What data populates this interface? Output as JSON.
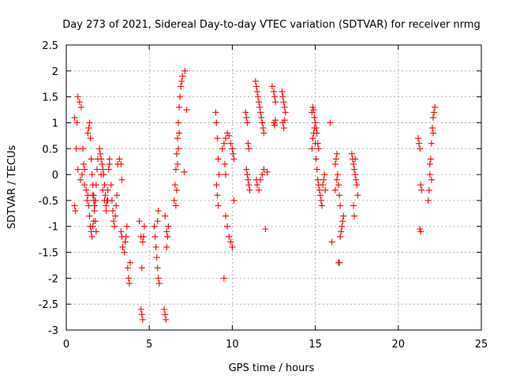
{
  "chart_data": {
    "type": "scatter",
    "title": "Day 273 of 2021, Sidereal Day-to-day VTEC variation (SDTVAR) for receiver nrmg",
    "xlabel": "GPS time / hours",
    "ylabel": "SDTVAR / TECUs",
    "xlim": [
      0,
      25
    ],
    "ylim": [
      -3,
      2.5
    ],
    "xticks": [
      0,
      5,
      10,
      15,
      20,
      25
    ],
    "xtick_labels": [
      "0",
      "5",
      "10",
      "15",
      "20",
      "25"
    ],
    "yticks": [
      2.5,
      2,
      1.5,
      1,
      0.5,
      0,
      -0.5,
      -1,
      -1.5,
      -2,
      -2.5,
      -3
    ],
    "ytick_labels": [
      "2.5",
      "2",
      "1.5",
      "1",
      "0.5",
      "0",
      "-0.5",
      "-1",
      "-1.5",
      "-2",
      "-2.5",
      "-3"
    ],
    "grid": true,
    "marker": "plus",
    "color": "#ff0000",
    "series": [
      {
        "name": "SDTVAR",
        "x": [
          0.5,
          0.6,
          0.7,
          0.5,
          0.55,
          0.65,
          0.7,
          0.8,
          0.9,
          1.0,
          1.05,
          1.1,
          0.85,
          0.95,
          1.1,
          1.2,
          1.25,
          1.3,
          1.35,
          1.4,
          1.45,
          1.5,
          1.55,
          1.6,
          1.65,
          1.7,
          1.75,
          1.8,
          1.85,
          1.9,
          1.3,
          1.35,
          1.4,
          1.45,
          1.5,
          1.55,
          1.6,
          1.65,
          1.7,
          1.75,
          1.8,
          1.6,
          1.65,
          1.7,
          1.75,
          2.0,
          2.05,
          2.1,
          2.15,
          2.2,
          2.25,
          2.3,
          2.35,
          2.4,
          2.45,
          2.5,
          2.55,
          2.6,
          2.1,
          2.2,
          2.3,
          2.4,
          2.5,
          2.6,
          2.7,
          2.75,
          2.8,
          2.85,
          2.9,
          2.95,
          3.0,
          3.05,
          3.1,
          3.2,
          3.3,
          3.35,
          3.3,
          3.35,
          3.4,
          3.5,
          3.55,
          3.6,
          3.65,
          3.7,
          3.75,
          3.8,
          3.85,
          4.4,
          4.5,
          4.55,
          4.6,
          4.5,
          4.55,
          4.6,
          4.65,
          4.7,
          5.3,
          5.35,
          5.4,
          5.45,
          5.5,
          5.55,
          5.6,
          5.5,
          5.55,
          5.9,
          5.95,
          6.0,
          6.05,
          6.1,
          6.15,
          5.95,
          6.05,
          6.5,
          6.55,
          6.6,
          6.65,
          6.7,
          6.75,
          6.8,
          6.85,
          6.9,
          6.95,
          7.0,
          6.6,
          6.65,
          6.7,
          6.75,
          6.8,
          7.15,
          7.25,
          7.1,
          9.0,
          9.05,
          9.1,
          9.15,
          9.2,
          9.05,
          9.1,
          9.15,
          9.4,
          9.5,
          9.6,
          9.7,
          9.8,
          9.9,
          10.0,
          10.05,
          10.1,
          9.6,
          9.7,
          9.8,
          9.9,
          10.0,
          10.1,
          9.5,
          9.55,
          9.6,
          10.8,
          10.85,
          10.9,
          10.95,
          11.0,
          10.85,
          10.9,
          10.95,
          11.0,
          11.05,
          11.4,
          11.45,
          11.5,
          11.55,
          11.6,
          11.65,
          11.7,
          11.75,
          11.8,
          11.85,
          11.9,
          11.45,
          11.5,
          11.6,
          11.7,
          11.8,
          11.9,
          12.0,
          12.1,
          12.4,
          12.5,
          12.55,
          12.6,
          12.5,
          12.55,
          12.6,
          13.0,
          13.05,
          13.1,
          13.15,
          13.2,
          13.05,
          13.1,
          13.15,
          14.8,
          14.85,
          14.9,
          14.95,
          15.0,
          15.05,
          15.1,
          15.15,
          15.2,
          14.8,
          14.85,
          14.9,
          14.95,
          15.0,
          15.05,
          15.1,
          15.15,
          15.2,
          15.25,
          15.3,
          15.35,
          15.4,
          15.45,
          15.5,
          15.55,
          15.6,
          15.9,
          16.0,
          16.2,
          16.25,
          16.3,
          16.35,
          16.4,
          16.45,
          16.5,
          16.4,
          16.45,
          16.5,
          16.55,
          16.6,
          16.65,
          16.7,
          16.2,
          16.3,
          17.2,
          17.25,
          17.3,
          17.35,
          17.4,
          17.45,
          17.5,
          17.55,
          17.3,
          17.35,
          17.4,
          21.2,
          21.25,
          21.3,
          21.35,
          21.4,
          21.3,
          21.35,
          21.8,
          21.85,
          21.9,
          21.95,
          22.0,
          22.05,
          22.1,
          22.15,
          22.2,
          21.9,
          22.0,
          22.1
        ],
        "y": [
          1.1,
          0.5,
          0.1,
          -0.6,
          -0.7,
          1.0,
          1.5,
          1.4,
          1.3,
          0.5,
          0.2,
          -0.2,
          -0.1,
          0.0,
          0.1,
          -0.3,
          -0.5,
          -0.4,
          -0.6,
          -0.8,
          -1.0,
          -1.1,
          -1.2,
          -1.0,
          -0.9,
          -0.7,
          -0.5,
          -0.2,
          0.1,
          0.3,
          0.8,
          0.9,
          1.0,
          0.7,
          0.3,
          0.0,
          -0.2,
          -0.4,
          -0.6,
          -0.9,
          -1.1,
          -0.4,
          -0.5,
          -0.6,
          -0.5,
          0.5,
          0.4,
          0.3,
          0.2,
          0.1,
          0.0,
          -0.2,
          -0.4,
          -0.6,
          -0.5,
          -0.3,
          0.1,
          0.3,
          0.0,
          -0.3,
          -0.5,
          -0.7,
          -0.5,
          0.2,
          -0.2,
          -0.5,
          -0.7,
          -0.9,
          -1.0,
          -0.8,
          -0.6,
          -0.4,
          0.2,
          0.3,
          0.2,
          -0.1,
          -1.1,
          -1.2,
          -1.4,
          -1.5,
          -1.3,
          -1.2,
          -1.0,
          -1.8,
          -2.0,
          -2.1,
          -1.7,
          -0.9,
          -1.2,
          -1.8,
          -1.3,
          -2.6,
          -2.7,
          -2.8,
          -1.2,
          -1.0,
          -1.0,
          -1.2,
          -1.4,
          -1.6,
          -1.8,
          -2.0,
          -2.1,
          -0.9,
          -0.7,
          -2.6,
          -2.7,
          -2.8,
          -1.4,
          -1.2,
          -1.0,
          -0.8,
          -1.1,
          -0.5,
          -0.2,
          0.1,
          0.4,
          0.7,
          1.0,
          1.3,
          1.5,
          1.7,
          1.8,
          1.9,
          -0.6,
          -0.3,
          0.2,
          0.5,
          0.8,
          2.0,
          1.25,
          0.05,
          1.2,
          1.0,
          0.7,
          0.3,
          0.0,
          -0.2,
          -0.4,
          -0.6,
          0.5,
          0.6,
          0.7,
          0.8,
          0.75,
          0.6,
          0.5,
          0.4,
          0.3,
          -0.8,
          -1.0,
          -1.2,
          -1.3,
          -1.4,
          -0.5,
          -2.0,
          0.2,
          0.0,
          1.2,
          1.1,
          1.0,
          0.6,
          0.5,
          0.1,
          0.0,
          -0.1,
          -0.2,
          -0.3,
          1.8,
          1.7,
          1.6,
          1.5,
          1.4,
          1.3,
          1.2,
          1.1,
          1.0,
          0.9,
          0.8,
          -0.1,
          -0.2,
          -0.3,
          -0.1,
          0.0,
          0.1,
          -1.05,
          0.05,
          1.7,
          1.6,
          1.5,
          1.4,
          1.0,
          0.95,
          1.05,
          1.6,
          1.5,
          1.4,
          1.3,
          1.2,
          1.0,
          0.9,
          1.05,
          1.2,
          1.3,
          1.25,
          1.1,
          1.0,
          0.9,
          0.8,
          0.6,
          0.5,
          0.5,
          0.7,
          0.8,
          0.9,
          0.6,
          0.3,
          0.1,
          -0.1,
          -0.2,
          -0.3,
          -0.4,
          -0.5,
          -0.6,
          -0.2,
          -0.1,
          0.0,
          -0.3,
          1.0,
          -1.3,
          0.2,
          0.3,
          0.4,
          0.0,
          -0.2,
          -0.4,
          -0.6,
          -1.7,
          -1.7,
          -1.2,
          -1.1,
          -1.0,
          -0.9,
          -0.8,
          -0.3,
          -0.1,
          0.4,
          0.3,
          0.2,
          0.1,
          0.0,
          -0.1,
          -0.2,
          -0.4,
          -0.6,
          -0.8,
          0.3,
          0.7,
          0.6,
          0.5,
          -0.2,
          -0.3,
          -1.05,
          -1.1,
          -0.5,
          -0.3,
          0.0,
          0.3,
          0.6,
          0.9,
          1.1,
          1.2,
          1.3,
          0.2,
          -0.1,
          0.8
        ]
      }
    ]
  }
}
